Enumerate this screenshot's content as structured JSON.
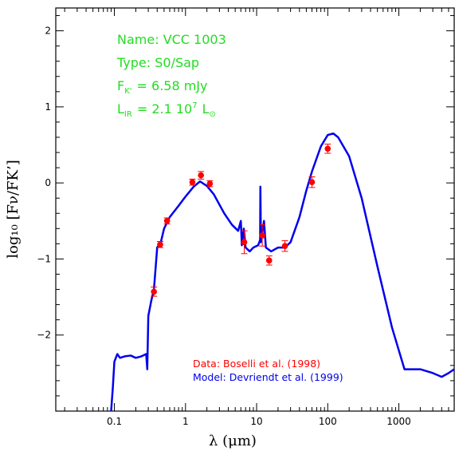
{
  "chart_data": {
    "type": "scatter",
    "xscale": "log",
    "xlim": [
      0.015,
      6000
    ],
    "ylim": [
      -3.0,
      2.3
    ],
    "xticks": [
      0.1,
      1,
      10,
      100,
      1000
    ],
    "xtick_labels": [
      "0.1",
      "1",
      "10",
      "100",
      "1000"
    ],
    "yticks": [
      -2,
      -1,
      0,
      1,
      2
    ],
    "ytick_labels": [
      "−2",
      "−1",
      "0",
      "1",
      "2"
    ],
    "xlabel": "λ (μm)",
    "ylabel": "log₁₀ [Fν/FΚ’]",
    "info": {
      "name": "Name: VCC 1003",
      "type": "Type: S0/Sap",
      "flux_label": "F",
      "flux_sub": "K'",
      "flux_value": "= 6.58 mJy",
      "lir_label": "L",
      "lir_sub": "IR",
      "lir_value": "= 2.1 10",
      "lir_exp": "7",
      "lir_unit": "L",
      "lir_sun": "⊙"
    },
    "series": [
      {
        "name": "Data: Boselli et al. (1998)",
        "kind": "points",
        "color": "#ff0000",
        "points": [
          {
            "x": 0.36,
            "y": -1.43,
            "err": 0.06
          },
          {
            "x": 0.44,
            "y": -0.81,
            "err": 0.04
          },
          {
            "x": 0.55,
            "y": -0.5,
            "err": 0.04
          },
          {
            "x": 1.25,
            "y": 0.01,
            "err": 0.04
          },
          {
            "x": 1.65,
            "y": 0.1,
            "err": 0.05
          },
          {
            "x": 2.2,
            "y": -0.01,
            "err": 0.04
          },
          {
            "x": 6.7,
            "y": -0.78,
            "err": 0.15
          },
          {
            "x": 12,
            "y": -0.69,
            "err": 0.14
          },
          {
            "x": 15,
            "y": -1.02,
            "err": 0.06
          },
          {
            "x": 25,
            "y": -0.83,
            "err": 0.07
          },
          {
            "x": 60,
            "y": 0.01,
            "err": 0.07
          },
          {
            "x": 100,
            "y": 0.45,
            "err": 0.06
          }
        ]
      },
      {
        "name": "Model: Devriendt et al. (1999)",
        "kind": "line",
        "color": "#0000ee",
        "points": [
          [
            0.09,
            -3.0
          ],
          [
            0.095,
            -2.7
          ],
          [
            0.1,
            -2.35
          ],
          [
            0.11,
            -2.25
          ],
          [
            0.12,
            -2.3
          ],
          [
            0.14,
            -2.28
          ],
          [
            0.17,
            -2.27
          ],
          [
            0.2,
            -2.3
          ],
          [
            0.24,
            -2.28
          ],
          [
            0.28,
            -2.25
          ],
          [
            0.29,
            -2.45
          ],
          [
            0.3,
            -1.75
          ],
          [
            0.33,
            -1.55
          ],
          [
            0.36,
            -1.4
          ],
          [
            0.4,
            -0.85
          ],
          [
            0.45,
            -0.78
          ],
          [
            0.5,
            -0.6
          ],
          [
            0.6,
            -0.45
          ],
          [
            0.8,
            -0.3
          ],
          [
            1.0,
            -0.18
          ],
          [
            1.3,
            -0.05
          ],
          [
            1.6,
            0.02
          ],
          [
            2.0,
            -0.04
          ],
          [
            2.5,
            -0.15
          ],
          [
            3.5,
            -0.4
          ],
          [
            4.5,
            -0.55
          ],
          [
            5.5,
            -0.63
          ],
          [
            6.0,
            -0.5
          ],
          [
            6.2,
            -0.82
          ],
          [
            6.6,
            -0.6
          ],
          [
            7.0,
            -0.85
          ],
          [
            8.0,
            -0.9
          ],
          [
            9.0,
            -0.85
          ],
          [
            10.5,
            -0.82
          ],
          [
            11.2,
            -0.75
          ],
          [
            11.3,
            -0.05
          ],
          [
            11.5,
            -0.78
          ],
          [
            12.7,
            -0.5
          ],
          [
            13.5,
            -0.85
          ],
          [
            16,
            -0.9
          ],
          [
            20,
            -0.85
          ],
          [
            25,
            -0.85
          ],
          [
            30,
            -0.78
          ],
          [
            40,
            -0.45
          ],
          [
            50,
            -0.1
          ],
          [
            60,
            0.15
          ],
          [
            80,
            0.48
          ],
          [
            100,
            0.63
          ],
          [
            120,
            0.65
          ],
          [
            140,
            0.6
          ],
          [
            200,
            0.35
          ],
          [
            300,
            -0.2
          ],
          [
            500,
            -1.1
          ],
          [
            800,
            -1.9
          ],
          [
            1200,
            -2.45
          ],
          [
            2000,
            -2.45
          ],
          [
            3000,
            -2.5
          ],
          [
            4000,
            -2.55
          ],
          [
            5000,
            -2.5
          ],
          [
            6000,
            -2.45
          ]
        ]
      }
    ]
  }
}
